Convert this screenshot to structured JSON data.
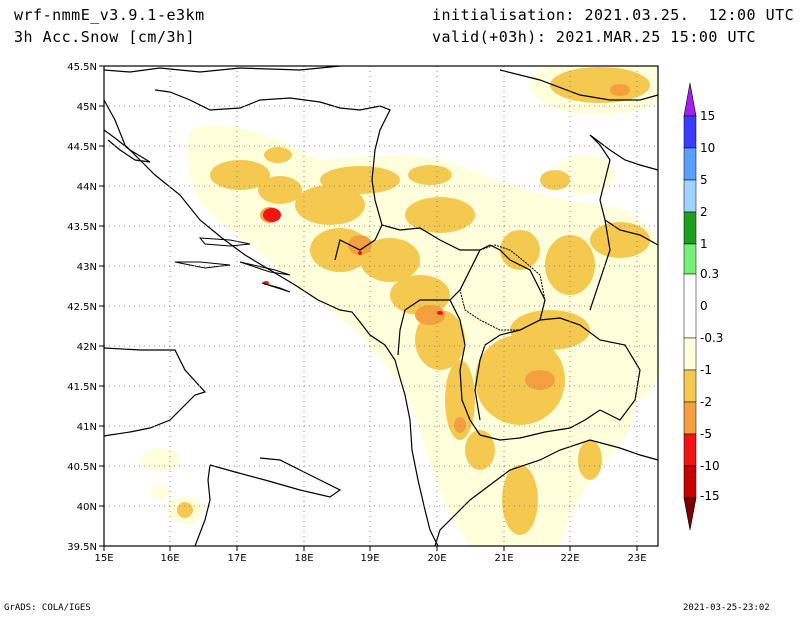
{
  "header": {
    "model": "wrf-nmmE_v3.9.1-e3km",
    "field": "3h Acc.Snow [cm/3h]",
    "init": "initialisation: 2021.03.25.  12:00 UTC",
    "valid": "valid(+03h): 2021.MAR.25 15:00 UTC"
  },
  "map": {
    "lat_labels": [
      "45.5N",
      "45N",
      "44.5N",
      "44N",
      "43.5N",
      "43N",
      "42.5N",
      "42N",
      "41.5N",
      "41N",
      "40.5N",
      "40N",
      "39.5N"
    ],
    "lon_labels": [
      "15E",
      "16E",
      "17E",
      "18E",
      "19E",
      "20E",
      "21E",
      "22E",
      "23E"
    ]
  },
  "legend": {
    "labels": [
      "15",
      "10",
      "5",
      "2",
      "1",
      "0.3",
      "0",
      "-0.3",
      "-1",
      "-2",
      "-5",
      "-10",
      "-15"
    ],
    "colors": [
      "#a020f0",
      "#3c3cff",
      "#5aa0ff",
      "#a0d2ff",
      "#1ea01e",
      "#78f078",
      "#ffffff",
      "#ffffdc",
      "#f5c850",
      "#f5a040",
      "#f01414",
      "#c80000",
      "#7d0000"
    ]
  },
  "footer": {
    "left": "GrADS: COLA/IGES",
    "right": "2021-03-25-23:02"
  }
}
